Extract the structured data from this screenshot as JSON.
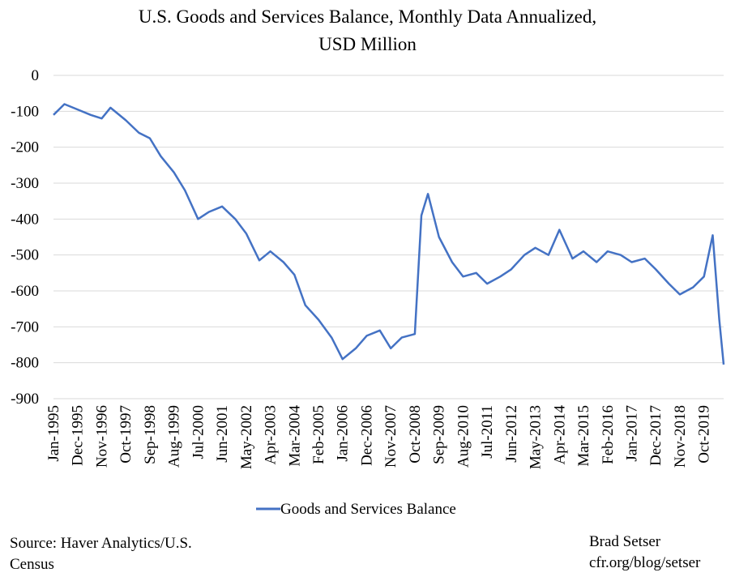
{
  "chart_data": {
    "type": "line",
    "title_line1": "U.S. Goods and Services Balance, Monthly Data Annualized,",
    "title_line2": "USD Million",
    "xlabel": "",
    "ylabel": "",
    "ylim": [
      -900,
      0
    ],
    "y_ticks": [
      "0",
      "-100",
      "-200",
      "-300",
      "-400",
      "-500",
      "-600",
      "-700",
      "-800",
      "-900"
    ],
    "x_tick_labels": [
      "Jan-1995",
      "Dec-1995",
      "Nov-1996",
      "Oct-1997",
      "Sep-1998",
      "Aug-1999",
      "Jul-2000",
      "Jun-2001",
      "May-2002",
      "Apr-2003",
      "Mar-2004",
      "Feb-2005",
      "Jan-2006",
      "Dec-2006",
      "Nov-2007",
      "Oct-2008",
      "Sep-2009",
      "Aug-2010",
      "Jul-2011",
      "Jun-2012",
      "May-2013",
      "Apr-2014",
      "Mar-2015",
      "Feb-2016",
      "Jan-2017",
      "Dec-2017",
      "Nov-2018",
      "Oct-2019"
    ],
    "grid": true,
    "legend": "bottom",
    "line_color": "#4472C4",
    "series": [
      {
        "name": "Goods and Services Balance",
        "x": [
          "Jan-1995",
          "Jun-1995",
          "Dec-1995",
          "Jun-1996",
          "Nov-1996",
          "Mar-1997",
          "Oct-1997",
          "Apr-1998",
          "Sep-1998",
          "Feb-1999",
          "Aug-1999",
          "Jan-2000",
          "Jul-2000",
          "Dec-2000",
          "Jun-2001",
          "Dec-2001",
          "May-2002",
          "Nov-2002",
          "Apr-2003",
          "Oct-2003",
          "Mar-2004",
          "Aug-2004",
          "Feb-2005",
          "Aug-2005",
          "Jan-2006",
          "Jul-2006",
          "Dec-2006",
          "Jun-2007",
          "Nov-2007",
          "Apr-2008",
          "Oct-2008",
          "Jan-2009",
          "Apr-2009",
          "Sep-2009",
          "Mar-2010",
          "Aug-2010",
          "Feb-2011",
          "Jul-2011",
          "Jan-2012",
          "Jun-2012",
          "Dec-2012",
          "May-2013",
          "Nov-2013",
          "Apr-2014",
          "Oct-2014",
          "Mar-2015",
          "Sep-2015",
          "Feb-2016",
          "Aug-2016",
          "Jan-2017",
          "Jul-2017",
          "Dec-2017",
          "Jun-2018",
          "Nov-2018",
          "May-2019",
          "Oct-2019",
          "Feb-2020",
          "May-2020",
          "Jul-2020"
        ],
        "values": [
          -110,
          -80,
          -95,
          -110,
          -120,
          -90,
          -125,
          -160,
          -175,
          -225,
          -270,
          -320,
          -400,
          -380,
          -365,
          -400,
          -440,
          -515,
          -490,
          -520,
          -555,
          -640,
          -680,
          -730,
          -790,
          -760,
          -725,
          -710,
          -760,
          -730,
          -720,
          -390,
          -330,
          -450,
          -520,
          -560,
          -550,
          -580,
          -560,
          -540,
          -500,
          -480,
          -500,
          -430,
          -510,
          -490,
          -520,
          -490,
          -500,
          -520,
          -510,
          -540,
          -580,
          -610,
          -590,
          -560,
          -445,
          -680,
          -805
        ]
      }
    ]
  },
  "legend": {
    "label": "Goods and Services Balance"
  },
  "footer": {
    "source_line1": "Source: Haver Analytics/U.S.",
    "source_line2": "Census",
    "author": "Brad Setser",
    "url": "cfr.org/blog/setser"
  }
}
